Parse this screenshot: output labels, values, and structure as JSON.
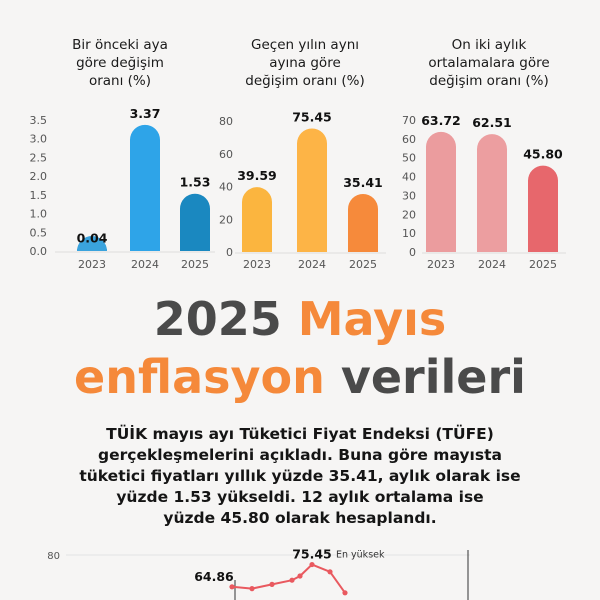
{
  "chart_data": [
    {
      "type": "bar",
      "title_lines": [
        "Bir önceki aya",
        "göre değişim",
        "oranı (%)"
      ],
      "categories": [
        "2023",
        "2024",
        "2025"
      ],
      "values": [
        0.04,
        3.37,
        1.53
      ],
      "value_labels": [
        "0.04",
        "3.37",
        "1.53"
      ],
      "yticks": [
        "3.5",
        "3.0",
        "2.5",
        "2.0",
        "1.5",
        "1.0",
        "0.5",
        "0.0"
      ],
      "ylim": [
        0,
        3.5
      ],
      "colors": [
        "#3aa3dd",
        "#2ea4e8",
        "#1a88c0"
      ]
    },
    {
      "type": "bar",
      "title_lines": [
        "Geçen yılın aynı",
        "ayına göre",
        "değişim oranı (%)"
      ],
      "categories": [
        "2023",
        "2024",
        "2025"
      ],
      "values": [
        39.59,
        75.45,
        35.41
      ],
      "value_labels": [
        "39.59",
        "75.45",
        "35.41"
      ],
      "yticks": [
        "80",
        "60",
        "40",
        "20",
        "0"
      ],
      "ylim": [
        0,
        80
      ],
      "colors": [
        "#fbb53f",
        "#fdb446",
        "#f68a3b"
      ]
    },
    {
      "type": "bar",
      "title_lines": [
        "On iki aylık",
        "ortalamalara göre",
        "değişim oranı (%)"
      ],
      "categories": [
        "2023",
        "2024",
        "2025"
      ],
      "values": [
        63.72,
        62.51,
        45.8
      ],
      "value_labels": [
        "63.72",
        "62.51",
        "45.80"
      ],
      "yticks": [
        "70",
        "60",
        "50",
        "40",
        "30",
        "20",
        "10",
        "0"
      ],
      "ylim": [
        0,
        70
      ],
      "colors": [
        "#eb9c9e",
        "#ec9ea0",
        "#e7676c"
      ]
    },
    {
      "type": "line",
      "ytick_top": "80",
      "values": [
        64.86,
        64.0,
        66.0,
        68.0,
        70.0,
        75.45,
        72.0,
        62.0
      ],
      "annotations": [
        {
          "label": "64.86",
          "index": 0
        },
        {
          "label": "75.45",
          "index": 5
        },
        {
          "label": "En yüksek",
          "index": 5
        }
      ],
      "ylim": [
        30,
        80
      ],
      "color": "#e9595f"
    }
  ],
  "headline": {
    "line1_year": "2025",
    "line1_word": "Mayıs",
    "line2_word1": "enflasyon",
    "line2_word2": "verileri"
  },
  "description_lines": [
    "TÜİK mayıs ayı Tüketici Fiyat Endeksi (TÜFE)",
    "gerçekleşmelerini açıkladı. Buna göre mayısta",
    "tüketici fiyatları yıllık yüzde 35.41, aylık olarak ise",
    "yüzde 1.53 yükseldi. 12 aylık ortalama ise",
    "yüzde 45.80 olarak hesaplandı."
  ],
  "colors": {
    "orange": "#f5893a",
    "dark_gray": "#4a4a4a"
  }
}
